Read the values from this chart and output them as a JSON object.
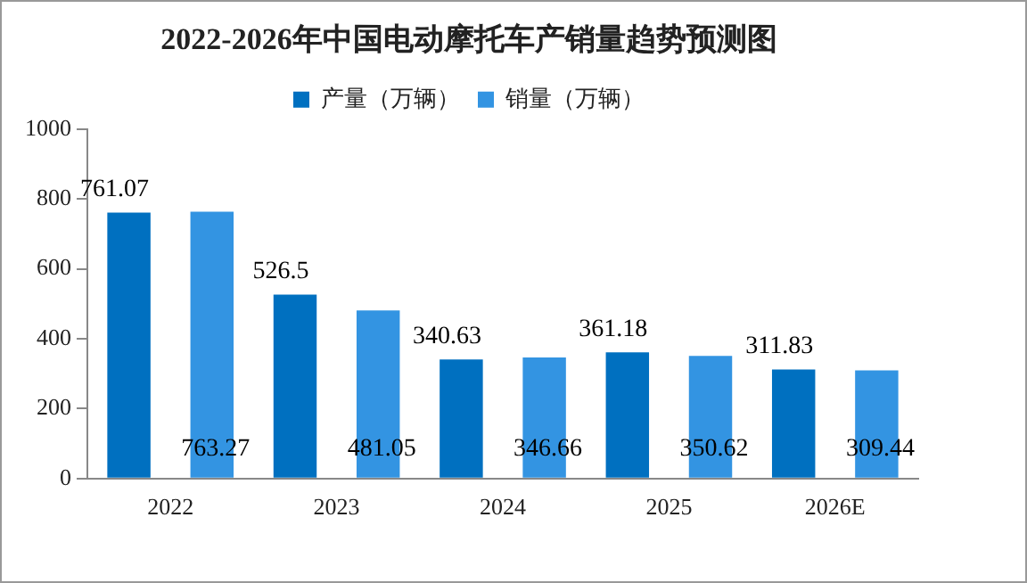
{
  "chart_data": {
    "type": "bar",
    "title": "2022-2026年中国电动摩托车产销量趋势预测图",
    "categories": [
      "2022",
      "2023",
      "2024",
      "2025",
      "2026E"
    ],
    "series": [
      {
        "name": "产量（万辆）",
        "color": "#0070c0",
        "values": [
          761.07,
          526.5,
          340.63,
          361.18,
          311.83
        ]
      },
      {
        "name": "销量（万辆）",
        "color": "#3394e2",
        "values": [
          763.27,
          481.05,
          346.66,
          350.62,
          309.44
        ]
      }
    ],
    "ylim": [
      0,
      1000
    ],
    "yticks": [
      0,
      200,
      400,
      600,
      800,
      1000
    ],
    "grid": false,
    "legend": "top",
    "data_labels": true
  }
}
